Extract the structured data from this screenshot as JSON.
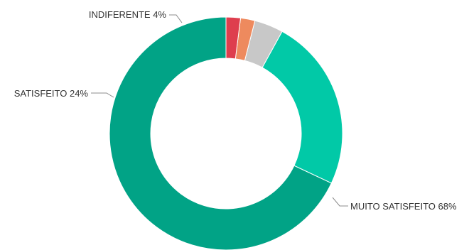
{
  "chart_data": {
    "type": "pie",
    "variant": "donut",
    "categories": [
      "MUITO SATISFEITO",
      "SATISFEITO",
      "INDIFERENTE",
      "",
      ""
    ],
    "values": [
      68,
      24,
      4,
      2,
      2
    ],
    "value_unit": "%",
    "colors": [
      "#01A386",
      "#01C9A7",
      "#C8C8C8",
      "#EE8A5E",
      "#DE3E4E"
    ],
    "data_labels": [
      "MUITO SATISFEITO 68%",
      "SATISFEITO 24%",
      "INDIFERENTE 4%",
      "",
      ""
    ],
    "start_angle": "top",
    "direction": "counterclockwise",
    "legend": "none",
    "title": ""
  }
}
